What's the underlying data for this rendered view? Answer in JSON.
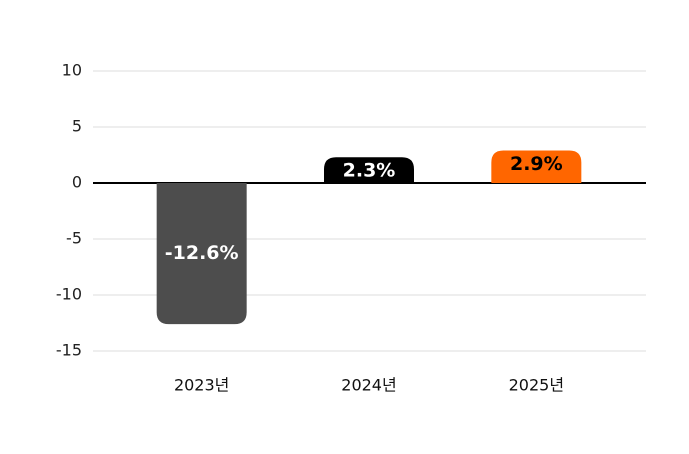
{
  "chart_data": {
    "type": "bar",
    "categories": [
      "2023년",
      "2024년",
      "2025년"
    ],
    "values": [
      -12.6,
      2.3,
      2.9
    ],
    "value_labels": [
      "-12.6%",
      "2.3%",
      "2.9%"
    ],
    "colors": [
      "#4d4d4d",
      "#000000",
      "#ff6600"
    ],
    "label_colors": [
      "#ffffff",
      "#ffffff",
      "#000000"
    ],
    "ylim": [
      -15,
      10
    ],
    "yticks": [
      -15,
      -10,
      -5,
      0,
      5,
      10
    ],
    "grid": true
  }
}
